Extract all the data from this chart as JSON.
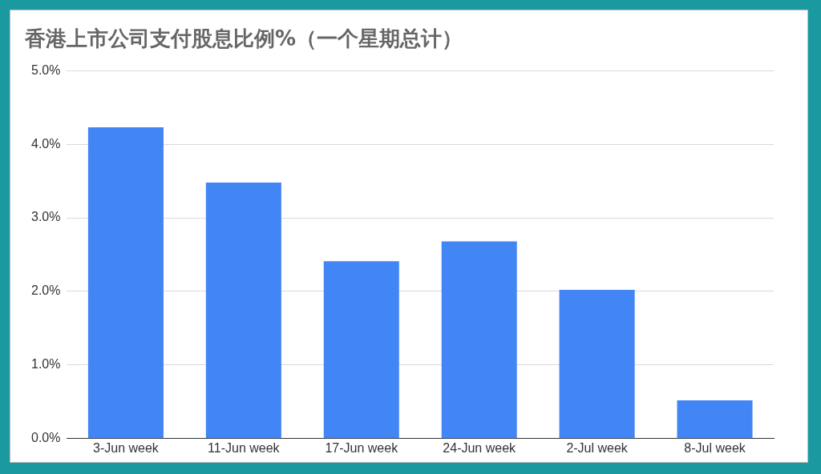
{
  "chart_data": {
    "type": "bar",
    "title": "香港上市公司支付股息比例%（一个星期总计）",
    "categories": [
      "3-Jun week",
      "11-Jun week",
      "17-Jun week",
      "24-Jun week",
      "2-Jul week",
      "8-Jul week"
    ],
    "values": [
      4.23,
      3.48,
      2.41,
      2.68,
      2.02,
      0.52
    ],
    "color": "#4285f4",
    "ylim": [
      0,
      5
    ],
    "yticks": [
      {
        "value": 0,
        "label": "0.0%"
      },
      {
        "value": 1,
        "label": "1.0%"
      },
      {
        "value": 2,
        "label": "2.0%"
      },
      {
        "value": 3,
        "label": "3.0%"
      },
      {
        "value": 4,
        "label": "4.0%"
      },
      {
        "value": 5,
        "label": "5.0%"
      }
    ],
    "grid": "y",
    "legend": false
  }
}
